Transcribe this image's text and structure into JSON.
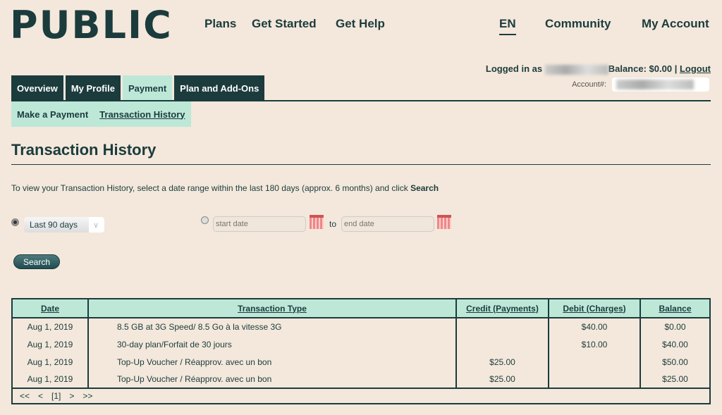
{
  "header": {
    "logo": "PUBLIC",
    "nav": [
      "Plans",
      "Get Started",
      "Get Help"
    ],
    "lang": "EN",
    "community": "Community",
    "account": "My Account"
  },
  "login": {
    "prefix": "Logged in as",
    "balance": "Balance: $0.00",
    "sep": "|",
    "logout": "Logout",
    "account_label": "Account#:"
  },
  "tabs": [
    "Overview",
    "My Profile",
    "Payment",
    "Plan and Add-Ons"
  ],
  "subtabs": [
    "Make a Payment",
    "Transaction History"
  ],
  "page": {
    "title": "Transaction History",
    "intro": "To view your Transaction History, select a date range within the last 180 days (approx. 6 months) and click ",
    "intro_bold": "Search"
  },
  "form": {
    "range": "Last 90 days",
    "start_placeholder": "start date",
    "end_placeholder": "end date",
    "to": "to",
    "search": "Search"
  },
  "table": {
    "headers": [
      "Date",
      "Transaction Type",
      "Credit (Payments)",
      "Debit (Charges)",
      "Balance"
    ],
    "rows": [
      [
        "Aug 1, 2019",
        "8.5 GB at 3G Speed/ 8.5 Go à la vitesse 3G",
        "",
        "$40.00",
        "$0.00"
      ],
      [
        "Aug 1, 2019",
        "30-day plan/Forfait de 30 jours",
        "",
        "$10.00",
        "$40.00"
      ],
      [
        "Aug 1, 2019",
        "Top-Up Voucher / Réapprov. avec un bon",
        "$25.00",
        "",
        "$50.00"
      ],
      [
        "Aug 1, 2019",
        "Top-Up Voucher / Réapprov. avec un bon",
        "$25.00",
        "",
        "$25.00"
      ]
    ],
    "pager": [
      "<<",
      "<",
      "[1]",
      ">",
      ">>"
    ]
  }
}
